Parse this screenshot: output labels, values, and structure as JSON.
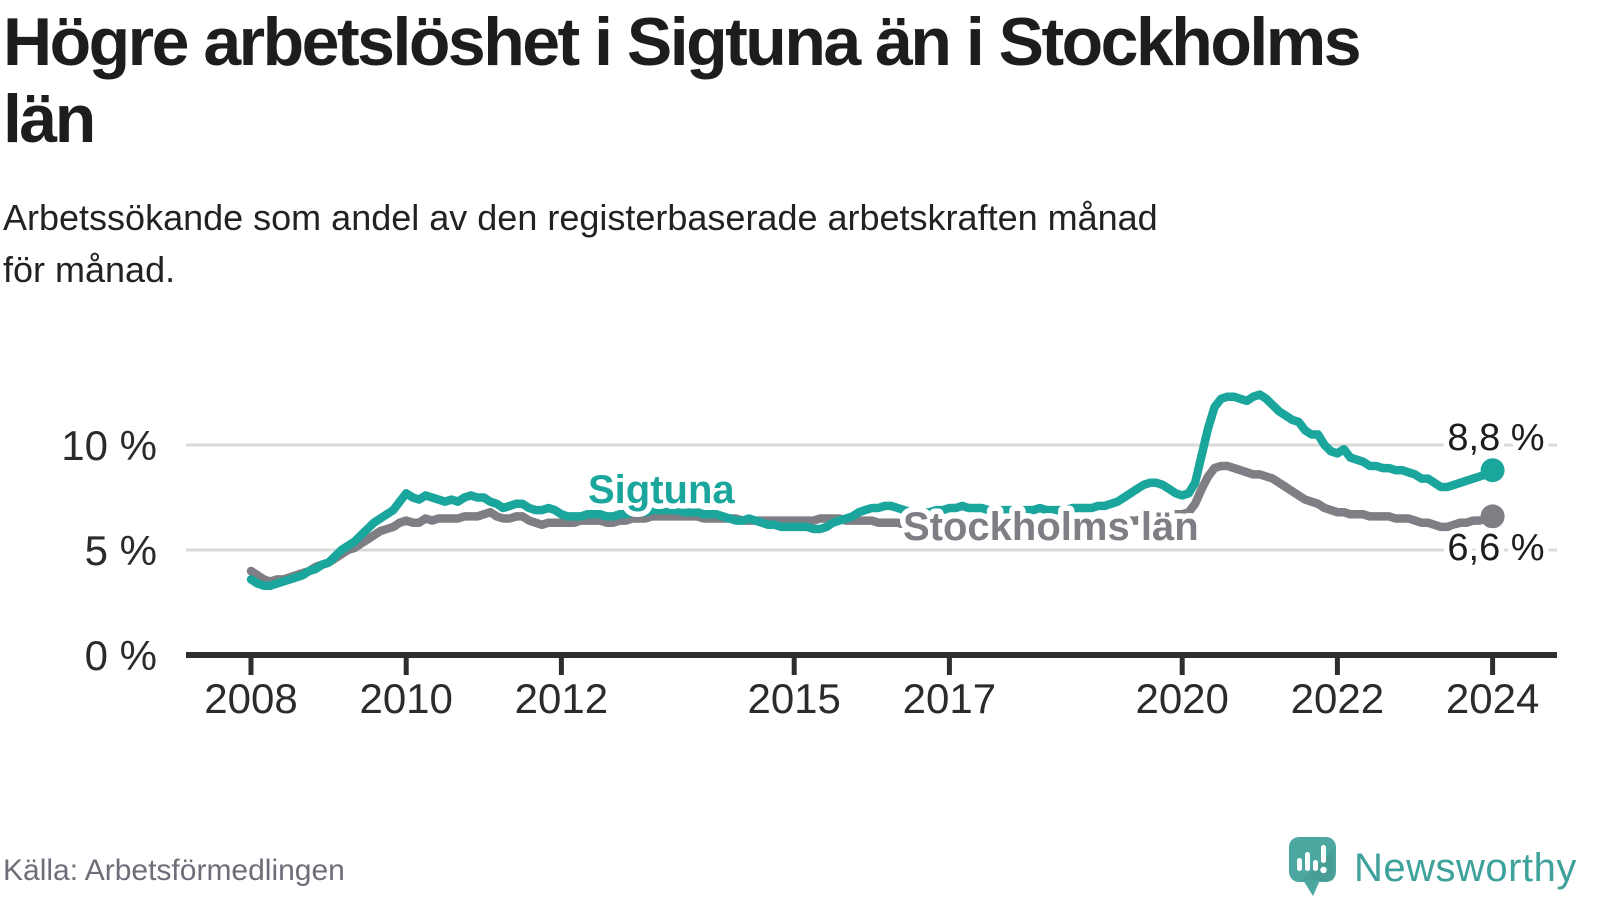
{
  "header": {
    "title_lines": [
      "Högre arbetslöshet i Sigtuna än i Stockholms",
      "län"
    ],
    "subtitle_lines": [
      "Arbetssökande som andel av den registerbaserade arbetskraften månad",
      "för månad."
    ]
  },
  "footer": {
    "source": "Källa: Arbetsförmedlingen",
    "logo_text": "Newsworthy",
    "logo_icon": "speech-bubble-bar-chart-icon",
    "logo_color": "#4da7a1"
  },
  "colors": {
    "accent_teal": "#1aa69d",
    "neutral_gray": "#7e7e84",
    "axis": "#2e2e2e",
    "gridline": "#dadada",
    "text_dark": "#1d1d1b",
    "source_gray": "#6e6e78"
  },
  "chart_data": {
    "type": "line",
    "title": "Högre arbetslöshet i Sigtuna än i Stockholms län",
    "subtitle": "Arbetssökande som andel av den registerbaserade arbetskraften månad för månad.",
    "x_start_year": 2008,
    "x_step_months": 1,
    "x_tick_years": [
      2008,
      2010,
      2012,
      2015,
      2017,
      2020,
      2022,
      2024
    ],
    "x_tick_labels": [
      "2008",
      "2010",
      "2012",
      "2015",
      "2017",
      "2020",
      "2022",
      "2024"
    ],
    "y_ticks": [
      0,
      5,
      10
    ],
    "y_tick_labels": [
      "0 %",
      "5 %",
      "10 %"
    ],
    "ylim": [
      0,
      13.5
    ],
    "xlim": [
      2008,
      2024.2
    ],
    "grid": "horizontal",
    "legend_position": "inline-labels",
    "series": [
      {
        "name": "Sigtuna",
        "color": "#1aa69d",
        "end_value": 8.8,
        "end_label": "8,8 %",
        "values": [
          3.6,
          3.4,
          3.3,
          3.3,
          3.4,
          3.5,
          3.6,
          3.7,
          3.8,
          4.0,
          4.1,
          4.3,
          4.4,
          4.7,
          5.0,
          5.2,
          5.4,
          5.7,
          6.0,
          6.3,
          6.5,
          6.7,
          6.9,
          7.3,
          7.7,
          7.5,
          7.4,
          7.6,
          7.5,
          7.4,
          7.3,
          7.4,
          7.3,
          7.5,
          7.6,
          7.5,
          7.5,
          7.3,
          7.2,
          7.0,
          7.1,
          7.2,
          7.2,
          7.0,
          6.9,
          6.9,
          7.0,
          6.9,
          6.7,
          6.6,
          6.6,
          6.6,
          6.7,
          6.7,
          6.7,
          6.6,
          6.6,
          6.7,
          6.7,
          6.8,
          6.8,
          6.8,
          6.9,
          6.9,
          6.9,
          6.9,
          6.9,
          6.8,
          6.8,
          6.8,
          6.7,
          6.7,
          6.7,
          6.6,
          6.5,
          6.4,
          6.4,
          6.5,
          6.4,
          6.3,
          6.2,
          6.2,
          6.1,
          6.1,
          6.1,
          6.1,
          6.1,
          6.0,
          6.0,
          6.1,
          6.3,
          6.4,
          6.5,
          6.6,
          6.8,
          6.9,
          7.0,
          7.0,
          7.1,
          7.1,
          7.0,
          6.9,
          6.8,
          6.8,
          6.8,
          6.8,
          6.9,
          6.9,
          7.0,
          7.0,
          7.1,
          7.0,
          7.0,
          7.0,
          6.9,
          6.9,
          6.9,
          6.9,
          6.9,
          6.9,
          6.9,
          6.9,
          7.0,
          6.9,
          6.9,
          6.9,
          6.9,
          7.0,
          7.0,
          7.0,
          7.0,
          7.1,
          7.1,
          7.2,
          7.3,
          7.5,
          7.7,
          7.9,
          8.1,
          8.2,
          8.2,
          8.1,
          7.9,
          7.7,
          7.6,
          7.7,
          8.2,
          9.5,
          10.8,
          11.8,
          12.2,
          12.3,
          12.3,
          12.2,
          12.1,
          12.3,
          12.4,
          12.2,
          11.9,
          11.6,
          11.4,
          11.2,
          11.1,
          10.7,
          10.5,
          10.5,
          10.0,
          9.7,
          9.6,
          9.8,
          9.4,
          9.3,
          9.2,
          9.0,
          9.0,
          8.9,
          8.9,
          8.8,
          8.8,
          8.7,
          8.6,
          8.4,
          8.4,
          8.2,
          8.0,
          8.0,
          8.1,
          8.2,
          8.3,
          8.4,
          8.5,
          8.6,
          8.8
        ]
      },
      {
        "name": "Stockholms län",
        "color": "#7e7e84",
        "end_value": 6.6,
        "end_label": "6,6 %",
        "values": [
          4.0,
          3.8,
          3.6,
          3.5,
          3.6,
          3.6,
          3.7,
          3.8,
          3.9,
          4.0,
          4.2,
          4.3,
          4.4,
          4.6,
          4.8,
          5.0,
          5.1,
          5.3,
          5.5,
          5.7,
          5.9,
          6.0,
          6.1,
          6.3,
          6.4,
          6.3,
          6.3,
          6.5,
          6.4,
          6.5,
          6.5,
          6.5,
          6.5,
          6.6,
          6.6,
          6.6,
          6.7,
          6.8,
          6.6,
          6.5,
          6.5,
          6.6,
          6.6,
          6.4,
          6.3,
          6.2,
          6.3,
          6.3,
          6.3,
          6.3,
          6.3,
          6.4,
          6.4,
          6.4,
          6.4,
          6.3,
          6.3,
          6.4,
          6.4,
          6.5,
          6.5,
          6.5,
          6.6,
          6.6,
          6.6,
          6.6,
          6.6,
          6.6,
          6.6,
          6.6,
          6.5,
          6.5,
          6.5,
          6.5,
          6.5,
          6.5,
          6.4,
          6.4,
          6.4,
          6.4,
          6.4,
          6.4,
          6.4,
          6.4,
          6.4,
          6.4,
          6.4,
          6.4,
          6.5,
          6.5,
          6.5,
          6.5,
          6.4,
          6.4,
          6.4,
          6.4,
          6.4,
          6.3,
          6.3,
          6.3,
          6.3,
          6.2,
          6.2,
          6.2,
          6.1,
          6.1,
          6.1,
          6.0,
          6.0,
          6.0,
          6.1,
          6.1,
          6.1,
          6.1,
          6.1,
          6.1,
          6.1,
          6.1,
          6.0,
          6.0,
          6.0,
          6.1,
          6.1,
          6.1,
          6.1,
          6.1,
          6.1,
          6.2,
          6.2,
          6.2,
          6.2,
          6.2,
          6.2,
          6.3,
          6.3,
          6.3,
          6.4,
          6.4,
          6.5,
          6.5,
          6.6,
          6.6,
          6.6,
          6.7,
          6.7,
          6.8,
          7.2,
          7.9,
          8.5,
          8.9,
          9.0,
          9.0,
          8.9,
          8.8,
          8.7,
          8.6,
          8.6,
          8.5,
          8.4,
          8.2,
          8.0,
          7.8,
          7.6,
          7.4,
          7.3,
          7.2,
          7.0,
          6.9,
          6.8,
          6.8,
          6.7,
          6.7,
          6.7,
          6.6,
          6.6,
          6.6,
          6.6,
          6.5,
          6.5,
          6.5,
          6.4,
          6.3,
          6.3,
          6.2,
          6.1,
          6.1,
          6.2,
          6.3,
          6.3,
          6.4,
          6.4,
          6.5,
          6.6
        ]
      }
    ]
  }
}
